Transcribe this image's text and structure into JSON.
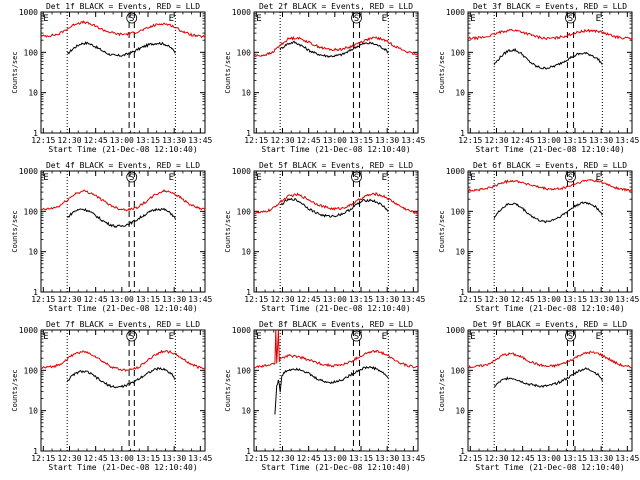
{
  "figure": {
    "panels_common": {
      "xlabel": "Start Time (21-Dec-08 12:10:40)",
      "ylabel": "Counts/sec",
      "x_ticks": [
        "12:15",
        "12:30",
        "12:45",
        "13:00",
        "13:15",
        "13:30",
        "13:45"
      ],
      "y_ticks": [
        "1",
        "10",
        "100",
        "1000"
      ],
      "markers": {
        "E": "E",
        "S": "S"
      }
    }
  },
  "chart_data": [
    {
      "type": "line",
      "title": "Det 1f BLACK = Events, RED = LLD",
      "x_unit": "minutes after 12:10:40",
      "xlim": [
        3,
        97
      ],
      "ylim": [
        1,
        1000
      ],
      "yscale": "log",
      "grid": false,
      "vlines_dotted": [
        18,
        80
      ],
      "vlines_dashed": [
        53.5,
        56.5
      ],
      "marker_labels": [
        "E",
        "S",
        "E"
      ],
      "series": [
        {
          "name": "Events",
          "color": "#000000",
          "x": [
            18,
            22,
            26,
            30,
            34,
            38,
            42,
            46,
            50,
            54,
            58,
            62,
            66,
            70,
            74,
            78,
            80
          ],
          "y": [
            90,
            130,
            165,
            170,
            140,
            110,
            90,
            82,
            84,
            95,
            115,
            140,
            160,
            170,
            160,
            125,
            95
          ]
        },
        {
          "name": "LLD",
          "color": "#e00000",
          "x": [
            3,
            8,
            13,
            18,
            23,
            28,
            33,
            38,
            43,
            48,
            53,
            58,
            63,
            68,
            73,
            78,
            83,
            88,
            93,
            97
          ],
          "y": [
            250,
            260,
            280,
            380,
            520,
            560,
            470,
            370,
            310,
            280,
            285,
            320,
            380,
            470,
            520,
            460,
            350,
            280,
            250,
            245
          ]
        }
      ]
    },
    {
      "type": "line",
      "title": "Det 2f BLACK = Events, RED = LLD",
      "x_unit": "minutes after 12:10:40",
      "xlim": [
        3,
        97
      ],
      "ylim": [
        1,
        1000
      ],
      "yscale": "log",
      "grid": false,
      "vlines_dotted": [
        18,
        80
      ],
      "vlines_dashed": [
        60,
        63.5
      ],
      "marker_labels": [
        "E",
        "S",
        "E"
      ],
      "series": [
        {
          "name": "Events",
          "color": "#000000",
          "x": [
            18,
            22,
            26,
            30,
            34,
            38,
            42,
            46,
            50,
            54,
            58,
            62,
            66,
            70,
            74,
            78,
            80
          ],
          "y": [
            120,
            160,
            180,
            150,
            115,
            95,
            85,
            80,
            82,
            90,
            110,
            140,
            165,
            170,
            150,
            120,
            100
          ]
        },
        {
          "name": "LLD",
          "color": "#e00000",
          "x": [
            3,
            8,
            13,
            18,
            23,
            28,
            33,
            38,
            43,
            48,
            53,
            58,
            63,
            68,
            73,
            78,
            83,
            88,
            93,
            97
          ],
          "y": [
            80,
            85,
            95,
            150,
            220,
            230,
            190,
            150,
            125,
            115,
            120,
            135,
            170,
            210,
            230,
            200,
            150,
            115,
            95,
            85
          ]
        }
      ]
    },
    {
      "type": "line",
      "title": "Det 3f BLACK = Events, RED = LLD",
      "x_unit": "minutes after 12:10:40",
      "xlim": [
        3,
        97
      ],
      "ylim": [
        1,
        1000
      ],
      "yscale": "log",
      "grid": false,
      "vlines_dotted": [
        18,
        80
      ],
      "vlines_dashed": [
        60,
        63.5
      ],
      "marker_labels": [
        "E",
        "S",
        "E"
      ],
      "series": [
        {
          "name": "Events",
          "color": "#000000",
          "x": [
            18,
            22,
            26,
            30,
            34,
            38,
            42,
            46,
            50,
            54,
            58,
            62,
            66,
            70,
            74,
            78,
            80
          ],
          "y": [
            50,
            80,
            110,
            115,
            90,
            60,
            45,
            40,
            42,
            48,
            60,
            75,
            90,
            95,
            85,
            65,
            50
          ]
        },
        {
          "name": "LLD",
          "color": "#e00000",
          "x": [
            3,
            8,
            13,
            18,
            23,
            28,
            33,
            38,
            43,
            48,
            53,
            58,
            63,
            68,
            73,
            78,
            83,
            88,
            93,
            97
          ],
          "y": [
            220,
            225,
            240,
            280,
            330,
            360,
            330,
            280,
            240,
            220,
            225,
            250,
            290,
            330,
            350,
            330,
            280,
            240,
            225,
            220
          ]
        }
      ]
    },
    {
      "type": "line",
      "title": "Det 4f BLACK = Events, RED = LLD",
      "x_unit": "minutes after 12:10:40",
      "xlim": [
        3,
        97
      ],
      "ylim": [
        1,
        1000
      ],
      "yscale": "log",
      "grid": false,
      "vlines_dotted": [
        18,
        80
      ],
      "vlines_dashed": [
        53.5,
        56.5
      ],
      "marker_labels": [
        "E",
        "S",
        "E"
      ],
      "series": [
        {
          "name": "Events",
          "color": "#000000",
          "x": [
            18,
            22,
            26,
            30,
            34,
            38,
            42,
            46,
            50,
            54,
            58,
            62,
            66,
            70,
            74,
            78,
            80
          ],
          "y": [
            70,
            100,
            115,
            105,
            80,
            60,
            48,
            42,
            44,
            50,
            62,
            80,
            100,
            115,
            110,
            85,
            65
          ]
        },
        {
          "name": "LLD",
          "color": "#e00000",
          "x": [
            3,
            8,
            13,
            18,
            23,
            28,
            33,
            38,
            43,
            48,
            53,
            58,
            63,
            68,
            73,
            78,
            83,
            88,
            93,
            97
          ],
          "y": [
            110,
            115,
            130,
            190,
            280,
            320,
            270,
            190,
            140,
            115,
            110,
            125,
            170,
            250,
            320,
            300,
            220,
            150,
            120,
            110
          ]
        }
      ]
    },
    {
      "type": "line",
      "title": "Det 5f BLACK = Events, RED = LLD",
      "x_unit": "minutes after 12:10:40",
      "xlim": [
        3,
        97
      ],
      "ylim": [
        1,
        1000
      ],
      "yscale": "log",
      "grid": false,
      "vlines_dotted": [
        18,
        80
      ],
      "vlines_dashed": [
        60,
        63.5
      ],
      "marker_labels": [
        "E",
        "S",
        "E"
      ],
      "series": [
        {
          "name": "Events",
          "color": "#000000",
          "x": [
            18,
            22,
            26,
            30,
            34,
            38,
            42,
            46,
            50,
            54,
            58,
            62,
            66,
            70,
            74,
            78,
            80
          ],
          "y": [
            140,
            190,
            200,
            165,
            120,
            95,
            80,
            75,
            78,
            88,
            110,
            150,
            185,
            190,
            165,
            125,
            100
          ]
        },
        {
          "name": "LLD",
          "color": "#e00000",
          "x": [
            3,
            8,
            13,
            18,
            23,
            28,
            33,
            38,
            43,
            48,
            53,
            58,
            63,
            68,
            73,
            78,
            83,
            88,
            93,
            97
          ],
          "y": [
            90,
            95,
            110,
            170,
            240,
            260,
            210,
            160,
            130,
            115,
            118,
            140,
            190,
            250,
            270,
            230,
            170,
            125,
            100,
            90
          ]
        }
      ]
    },
    {
      "type": "line",
      "title": "Det 6f BLACK = Events, RED = LLD",
      "x_unit": "minutes after 12:10:40",
      "xlim": [
        3,
        97
      ],
      "ylim": [
        1,
        1000
      ],
      "yscale": "log",
      "grid": false,
      "vlines_dotted": [
        18,
        80
      ],
      "vlines_dashed": [
        60,
        63.5
      ],
      "marker_labels": [
        "E",
        "S",
        "E"
      ],
      "series": [
        {
          "name": "Events",
          "color": "#000000",
          "x": [
            18,
            22,
            26,
            30,
            34,
            38,
            42,
            46,
            50,
            54,
            58,
            62,
            66,
            70,
            74,
            78,
            80
          ],
          "y": [
            70,
            115,
            150,
            155,
            120,
            85,
            65,
            55,
            58,
            68,
            85,
            115,
            150,
            165,
            150,
            110,
            80
          ]
        },
        {
          "name": "LLD",
          "color": "#e00000",
          "x": [
            3,
            8,
            13,
            18,
            23,
            28,
            33,
            38,
            43,
            48,
            53,
            58,
            63,
            68,
            73,
            78,
            83,
            88,
            93,
            97
          ],
          "y": [
            330,
            340,
            360,
            420,
            520,
            580,
            540,
            460,
            400,
            360,
            350,
            380,
            450,
            540,
            600,
            560,
            460,
            380,
            340,
            330
          ]
        }
      ]
    },
    {
      "type": "line",
      "title": "Det 7f BLACK = Events, RED = LLD",
      "x_unit": "minutes after 12:10:40",
      "xlim": [
        3,
        97
      ],
      "ylim": [
        1,
        1000
      ],
      "yscale": "log",
      "grid": false,
      "vlines_dotted": [
        18,
        80
      ],
      "vlines_dashed": [
        53.5,
        56.5
      ],
      "marker_labels": [
        "E",
        "S",
        "E"
      ],
      "series": [
        {
          "name": "Events",
          "color": "#000000",
          "x": [
            18,
            22,
            26,
            30,
            34,
            38,
            42,
            46,
            50,
            54,
            58,
            62,
            66,
            70,
            74,
            78,
            80
          ],
          "y": [
            55,
            80,
            95,
            90,
            70,
            52,
            42,
            38,
            40,
            46,
            58,
            75,
            95,
            110,
            105,
            80,
            60
          ]
        },
        {
          "name": "LLD",
          "color": "#e00000",
          "x": [
            3,
            8,
            13,
            18,
            23,
            28,
            33,
            38,
            43,
            48,
            53,
            58,
            63,
            68,
            73,
            78,
            83,
            88,
            93,
            97
          ],
          "y": [
            115,
            120,
            135,
            190,
            270,
            290,
            240,
            170,
            125,
            105,
            100,
            115,
            160,
            240,
            300,
            280,
            210,
            150,
            120,
            115
          ]
        }
      ]
    },
    {
      "type": "line",
      "title": "Det 8f BLACK = Events, RED = LLD",
      "x_unit": "minutes after 12:10:40",
      "xlim": [
        3,
        97
      ],
      "ylim": [
        1,
        1000
      ],
      "yscale": "log",
      "grid": false,
      "vlines_dotted": [
        18,
        80
      ],
      "vlines_dashed": [
        60,
        63.5
      ],
      "marker_labels": [
        "E",
        "S",
        "E"
      ],
      "series": [
        {
          "name": "Events",
          "color": "#000000",
          "x": [
            15,
            16,
            17,
            18,
            19,
            20,
            22,
            26,
            30,
            34,
            38,
            42,
            46,
            50,
            54,
            58,
            62,
            66,
            70,
            74,
            78,
            80
          ],
          "y": [
            8,
            40,
            60,
            30,
            70,
            85,
            100,
            110,
            105,
            85,
            65,
            55,
            50,
            52,
            60,
            75,
            95,
            115,
            120,
            105,
            80,
            65
          ]
        },
        {
          "name": "LLD",
          "color": "#e00000",
          "x": [
            3,
            8,
            13,
            15,
            15.5,
            16,
            17,
            17.5,
            18,
            23,
            28,
            33,
            38,
            43,
            48,
            53,
            58,
            63,
            68,
            73,
            78,
            83,
            88,
            93,
            97
          ],
          "y": [
            120,
            125,
            140,
            150,
            1000,
            150,
            1000,
            160,
            200,
            230,
            220,
            190,
            160,
            140,
            130,
            135,
            160,
            210,
            270,
            300,
            260,
            190,
            145,
            125,
            120
          ]
        }
      ]
    },
    {
      "type": "line",
      "title": "Det 9f BLACK = Events, RED = LLD",
      "x_unit": "minutes after 12:10:40",
      "xlim": [
        3,
        97
      ],
      "ylim": [
        1,
        1000
      ],
      "yscale": "log",
      "grid": false,
      "vlines_dotted": [
        18,
        80
      ],
      "vlines_dashed": [
        60,
        63.5
      ],
      "marker_labels": [
        "E",
        "S",
        "E"
      ],
      "series": [
        {
          "name": "Events",
          "color": "#000000",
          "x": [
            18,
            22,
            26,
            30,
            34,
            38,
            42,
            46,
            50,
            54,
            58,
            62,
            66,
            70,
            74,
            78,
            80
          ],
          "y": [
            40,
            55,
            65,
            62,
            52,
            45,
            42,
            40,
            42,
            48,
            58,
            72,
            95,
            110,
            100,
            75,
            55
          ]
        },
        {
          "name": "LLD",
          "color": "#e00000",
          "x": [
            3,
            8,
            13,
            18,
            23,
            28,
            33,
            38,
            43,
            48,
            53,
            58,
            63,
            68,
            73,
            78,
            83,
            88,
            93,
            97
          ],
          "y": [
            120,
            125,
            135,
            170,
            240,
            260,
            220,
            170,
            140,
            125,
            130,
            150,
            190,
            250,
            280,
            260,
            200,
            150,
            125,
            120
          ]
        }
      ]
    }
  ]
}
